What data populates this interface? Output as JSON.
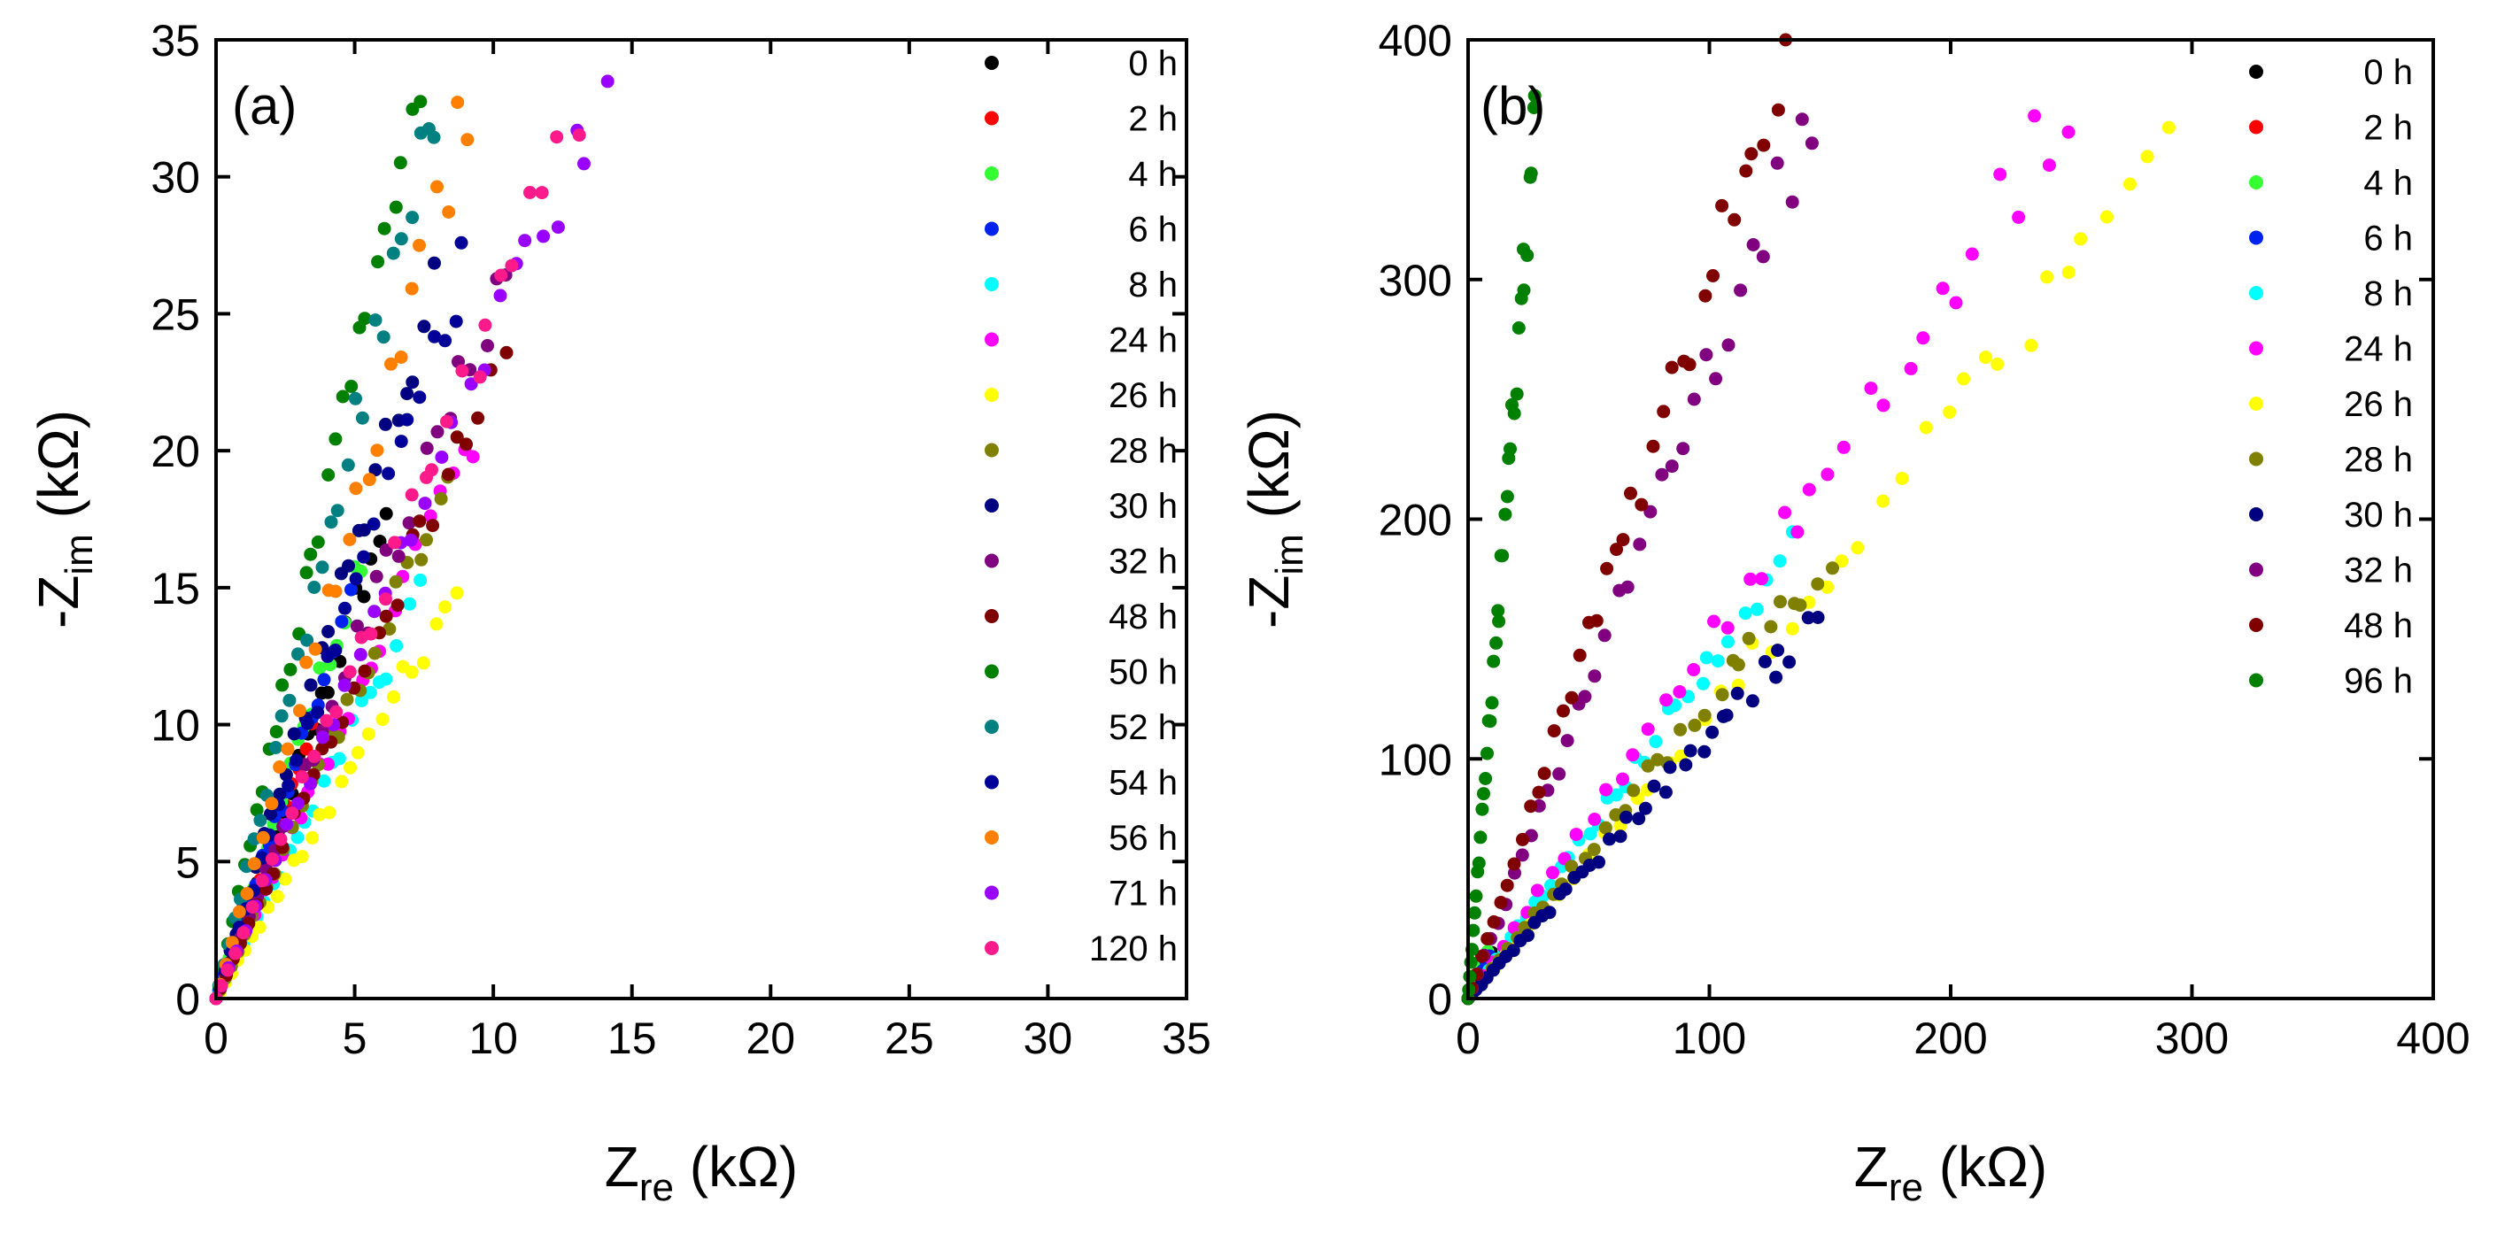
{
  "chart_data": [
    {
      "type": "scatter",
      "panel_label": "(a)",
      "xlabel": {
        "main": "Z",
        "sub": "re",
        "unit": "(kΩ)"
      },
      "ylabel": {
        "main": "-Z",
        "sub": "im",
        "unit": "(kΩ)"
      },
      "xlim": [
        0,
        35
      ],
      "ylim": [
        0,
        35
      ],
      "xticks": [
        0,
        5,
        10,
        15,
        20,
        25,
        30,
        35
      ],
      "yticks": [
        0,
        5,
        10,
        15,
        20,
        25,
        30,
        35
      ],
      "xtick_labels": [
        "0",
        "5",
        "10",
        "15",
        "20",
        "25",
        "30",
        "35"
      ],
      "ytick_labels": [
        "0",
        "5",
        "10",
        "15",
        "20",
        "25",
        "30",
        "35"
      ],
      "legend_position": "top-right",
      "series": [
        {
          "name": "0 h",
          "color": "#000000",
          "slope": 2.85,
          "xmax": 6.2,
          "n": 26
        },
        {
          "name": "2 h",
          "color": "#ff0000",
          "slope": 2.8,
          "xmax": 3.5,
          "n": 18
        },
        {
          "name": "4 h",
          "color": "#33ff33",
          "slope": 3.1,
          "xmax": 5.3,
          "n": 22
        },
        {
          "name": "6 h",
          "color": "#0022ee",
          "slope": 3.0,
          "xmax": 4.8,
          "n": 22
        },
        {
          "name": "8 h",
          "color": "#00ffff",
          "slope": 2.0,
          "xmax": 7.3,
          "n": 26
        },
        {
          "name": "24 h",
          "color": "#ff00ff",
          "slope": 2.2,
          "xmax": 9.3,
          "n": 28
        },
        {
          "name": "26 h",
          "color": "#ffff00",
          "slope": 1.72,
          "xmax": 8.6,
          "n": 28
        },
        {
          "name": "28 h",
          "color": "#808000",
          "slope": 2.25,
          "xmax": 8.5,
          "n": 28
        },
        {
          "name": "30 h",
          "color": "#000080",
          "slope": 3.3,
          "xmax": 7.9,
          "n": 28
        },
        {
          "name": "32 h",
          "color": "#800080",
          "slope": 2.55,
          "xmax": 10.6,
          "n": 30
        },
        {
          "name": "48 h",
          "color": "#800000",
          "slope": 2.3,
          "xmax": 10.5,
          "n": 30
        },
        {
          "name": "50 h",
          "color": "#008000",
          "slope": 4.6,
          "xmax": 7.3,
          "n": 30
        },
        {
          "name": "52 h",
          "color": "#008080",
          "slope": 4.2,
          "xmax": 8.0,
          "n": 30
        },
        {
          "name": "54 h",
          "color": "#000099",
          "slope": 3.0,
          "xmax": 9.0,
          "n": 28
        },
        {
          "name": "56 h",
          "color": "#ff8000",
          "slope": 3.6,
          "xmax": 9.1,
          "n": 28
        },
        {
          "name": "71 h",
          "color": "#9900ff",
          "slope": 2.4,
          "xmax": 13.9,
          "n": 32
        },
        {
          "name": "120 h",
          "color": "#ff1a8c",
          "slope": 2.5,
          "xmax": 12.9,
          "n": 32
        }
      ]
    },
    {
      "type": "scatter",
      "panel_label": "(b)",
      "xlabel": {
        "main": "Z",
        "sub": "re",
        "unit": "(kΩ)"
      },
      "ylabel": {
        "main": "-Z",
        "sub": "im",
        "unit": "(kΩ)"
      },
      "xlim": [
        0,
        400
      ],
      "ylim": [
        0,
        400
      ],
      "xticks": [
        0,
        100,
        200,
        300,
        400
      ],
      "yticks": [
        0,
        100,
        200,
        300,
        400
      ],
      "xtick_labels": [
        "0",
        "100",
        "200",
        "300",
        "400"
      ],
      "ytick_labels": [
        "0",
        "100",
        "200",
        "300",
        "400"
      ],
      "legend_position": "top-right",
      "series": [
        {
          "name": "0 h",
          "color": "#000000",
          "slope": 2.0,
          "xmax": 10,
          "n": 10
        },
        {
          "name": "2 h",
          "color": "#ff0000",
          "slope": 2.0,
          "xmax": 8,
          "n": 8
        },
        {
          "name": "4 h",
          "color": "#33ff33",
          "slope": 2.5,
          "xmax": 8,
          "n": 8
        },
        {
          "name": "6 h",
          "color": "#0022ee",
          "slope": 2.0,
          "xmax": 9,
          "n": 8
        },
        {
          "name": "8 h",
          "color": "#00ffff",
          "slope": 1.4,
          "xmax": 133,
          "n": 36
        },
        {
          "name": "24 h",
          "color": "#ff00ff",
          "slope": 1.5,
          "xmax": 250,
          "n": 40
        },
        {
          "name": "26 h",
          "color": "#ffff00",
          "slope": 1.2,
          "xmax": 290,
          "n": 42
        },
        {
          "name": "28 h",
          "color": "#808000",
          "slope": 1.25,
          "xmax": 150,
          "n": 36
        },
        {
          "name": "30 h",
          "color": "#000080",
          "slope": 1.1,
          "xmax": 143,
          "n": 42
        },
        {
          "name": "32 h",
          "color": "#800080",
          "slope": 2.6,
          "xmax": 142,
          "n": 36
        },
        {
          "name": "48 h",
          "color": "#800000",
          "slope": 3.0,
          "xmax": 131,
          "n": 38
        },
        {
          "name": "96 h",
          "color": "#008000",
          "slope": 13.0,
          "xmax": 28,
          "n": 40
        }
      ]
    }
  ]
}
